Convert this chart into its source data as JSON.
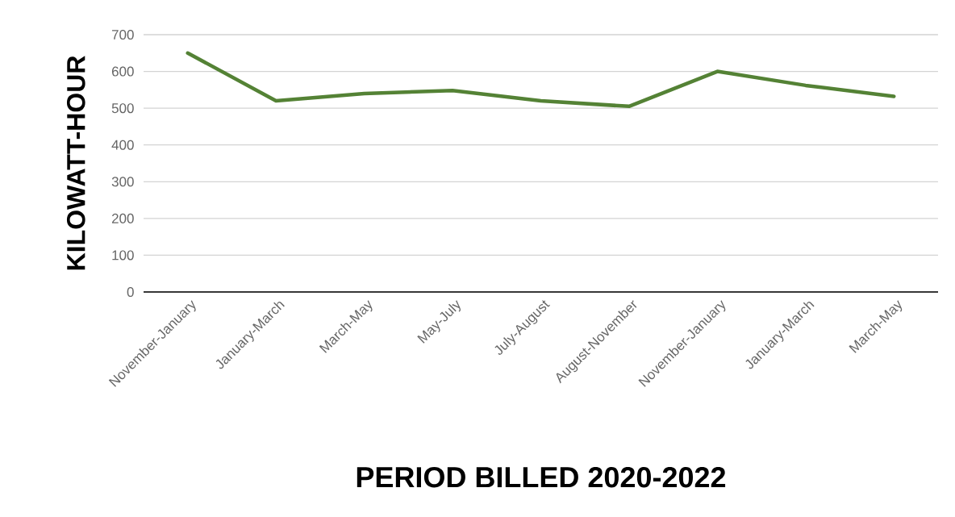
{
  "chart_data": {
    "type": "line",
    "xlabel": "PERIOD BILLED 2020-2022",
    "ylabel": "KILOWATT-HOUR",
    "categories": [
      "November-January",
      "January-March",
      "March-May",
      "May-July",
      "July-August",
      "August-November",
      "November-January",
      "January-March",
      "March-May"
    ],
    "series": [
      {
        "color": "#548235",
        "values": [
          650,
          520,
          540,
          548,
          520,
          505,
          600,
          562,
          532
        ]
      }
    ],
    "ylim": [
      0,
      700
    ],
    "yticks": [
      0,
      100,
      200,
      300,
      400,
      500,
      600,
      700
    ],
    "grid": "y",
    "marker": "none",
    "line_style": "solid"
  }
}
